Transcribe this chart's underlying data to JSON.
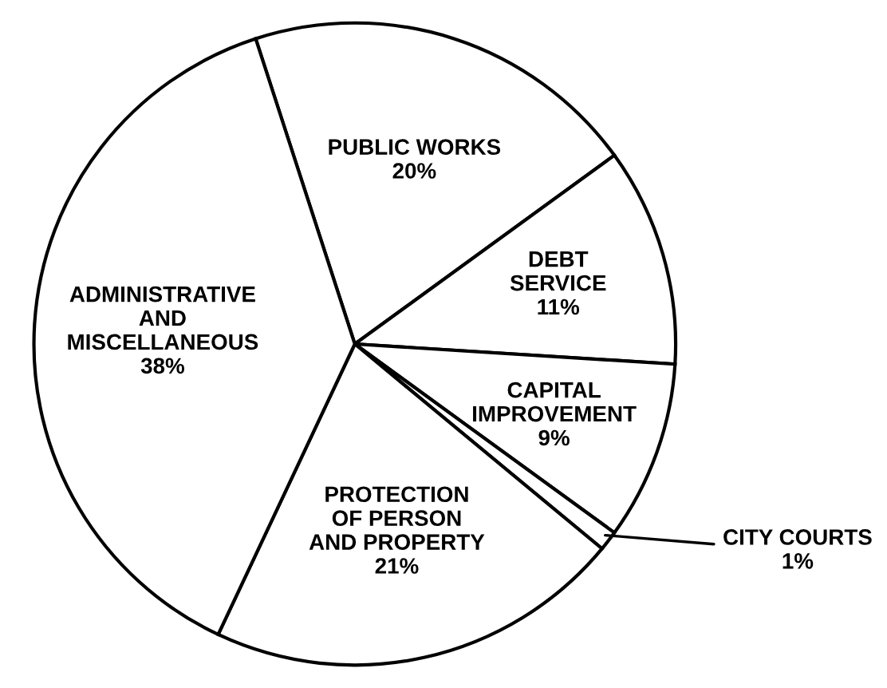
{
  "chart_data": {
    "type": "pie",
    "categories": [
      "PUBLIC WORKS",
      "DEBT\nSERVICE",
      "CAPITAL\nIMPROVEMENT",
      "CITY COURTS",
      "PROTECTION\nOF PERSON\nAND PROPERTY",
      "ADMINISTRATIVE\nAND\nMISCELLANEOUS"
    ],
    "values": [
      20,
      11,
      9,
      1,
      21,
      38
    ],
    "value_labels": [
      "20%",
      "11%",
      "9%",
      "1%",
      "21%",
      "38%"
    ],
    "colors": [
      "#ffffff",
      "#ffffff",
      "#ffffff",
      "#ffffff",
      "#ffffff",
      "#ffffff"
    ]
  }
}
